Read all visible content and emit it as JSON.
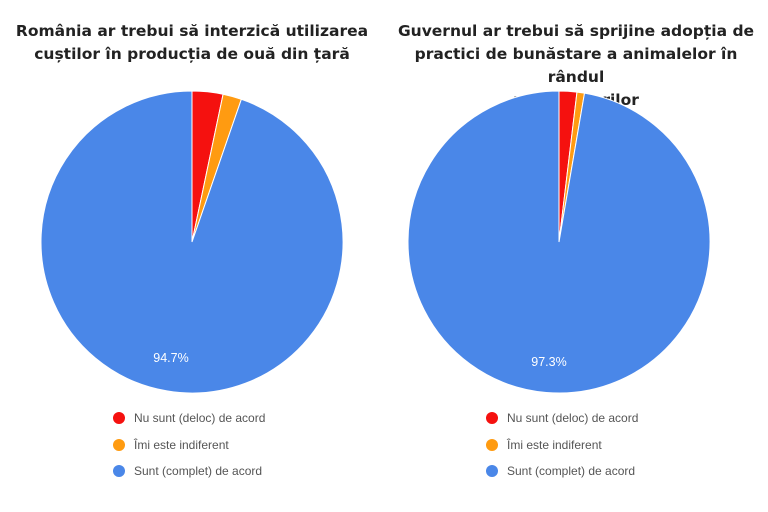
{
  "colors": {
    "disagree": "#f5110f",
    "indifferent": "#ff9b11",
    "agree": "#4a87e8"
  },
  "legend_labels": [
    "Nu sunt (deloc) de acord",
    "Îmi este indiferent",
    "Sunt (complet) de acord"
  ],
  "chart_data": [
    {
      "type": "pie",
      "title": "România ar trebui să interzică utilizarea cuștilor în producția de ouă din țară",
      "title_lines": [
        "România ar trebui să interzică utilizarea",
        "cuștilor în producția de ouă din țară"
      ],
      "categories": [
        "Nu sunt (deloc) de acord",
        "Îmi este indiferent",
        "Sunt (complet) de acord"
      ],
      "values": [
        3.3,
        2.0,
        94.7
      ],
      "data_label": "94.7%",
      "legend_placement": "bottom"
    },
    {
      "type": "pie",
      "title": "Guvernul ar trebui să sprijine adopția de practici de bunăstare a animalelor în rândul producătorilor",
      "title_lines": [
        "Guvernul ar trebui să sprijine adopția de",
        "practici de bunăstare a animalelor în rândul",
        "producătorilor"
      ],
      "categories": [
        "Nu sunt (deloc) de acord",
        "Îmi este indiferent",
        "Sunt (complet) de acord"
      ],
      "values": [
        1.9,
        0.8,
        97.3
      ],
      "data_label": "97.3%",
      "legend_placement": "bottom"
    }
  ]
}
